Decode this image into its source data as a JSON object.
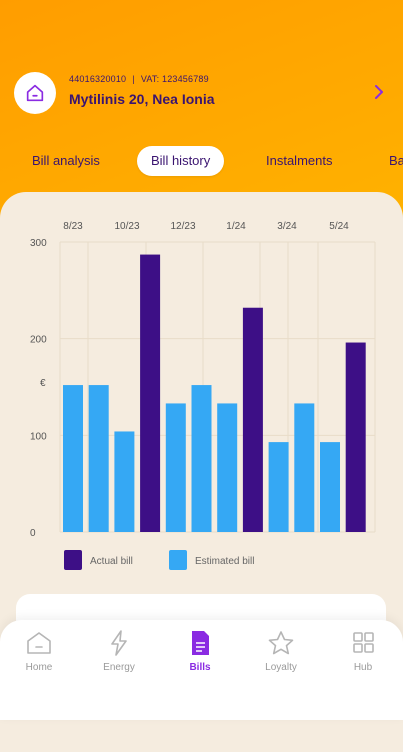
{
  "account": {
    "number": "44016320010",
    "vat": "VAT: 123456789",
    "address": "Mytilinis 20, Nea Ionia"
  },
  "tabs": [
    {
      "label": "Bill analysis",
      "active": false
    },
    {
      "label": "Bill history",
      "active": true
    },
    {
      "label": "Instalments",
      "active": false
    },
    {
      "label": "Ba",
      "active": false
    }
  ],
  "chart_data": {
    "type": "bar",
    "x_tick_labels": [
      "8/23",
      "10/23",
      "12/23",
      "1/24",
      "3/24",
      "5/24"
    ],
    "y_ticks": [
      0,
      100,
      200,
      300
    ],
    "ylim": [
      0,
      300
    ],
    "grid": true,
    "legend_position": "bottom-left",
    "bars": [
      {
        "value": 152,
        "type": "Estimated bill"
      },
      {
        "value": 152,
        "type": "Estimated bill"
      },
      {
        "value": 104,
        "type": "Estimated bill"
      },
      {
        "value": 287,
        "type": "Actual bill"
      },
      {
        "value": 133,
        "type": "Estimated bill"
      },
      {
        "value": 152,
        "type": "Estimated bill"
      },
      {
        "value": 133,
        "type": "Estimated bill"
      },
      {
        "value": 232,
        "type": "Actual bill"
      },
      {
        "value": 93,
        "type": "Estimated bill"
      },
      {
        "value": 133,
        "type": "Estimated bill"
      },
      {
        "value": 93,
        "type": "Estimated bill"
      },
      {
        "value": 196,
        "type": "Actual bill"
      }
    ],
    "legend": [
      {
        "name": "Actual bill",
        "color": "#3d0f86"
      },
      {
        "name": "Estimated bill",
        "color": "#35a8f4"
      }
    ],
    "stray_label": "€"
  },
  "nav": [
    {
      "label": "Home",
      "icon": "home-icon",
      "active": false
    },
    {
      "label": "Energy",
      "icon": "energy-bolt-icon",
      "active": false
    },
    {
      "label": "Bills",
      "icon": "bills-document-icon",
      "active": true
    },
    {
      "label": "Loyalty",
      "icon": "star-icon",
      "active": false
    },
    {
      "label": "Hub",
      "icon": "grid-icon",
      "active": false
    }
  ],
  "colors": {
    "actual": "#3d0f86",
    "estimated": "#35a8f4",
    "accent": "#8a2be2",
    "text": "#3a1470"
  }
}
